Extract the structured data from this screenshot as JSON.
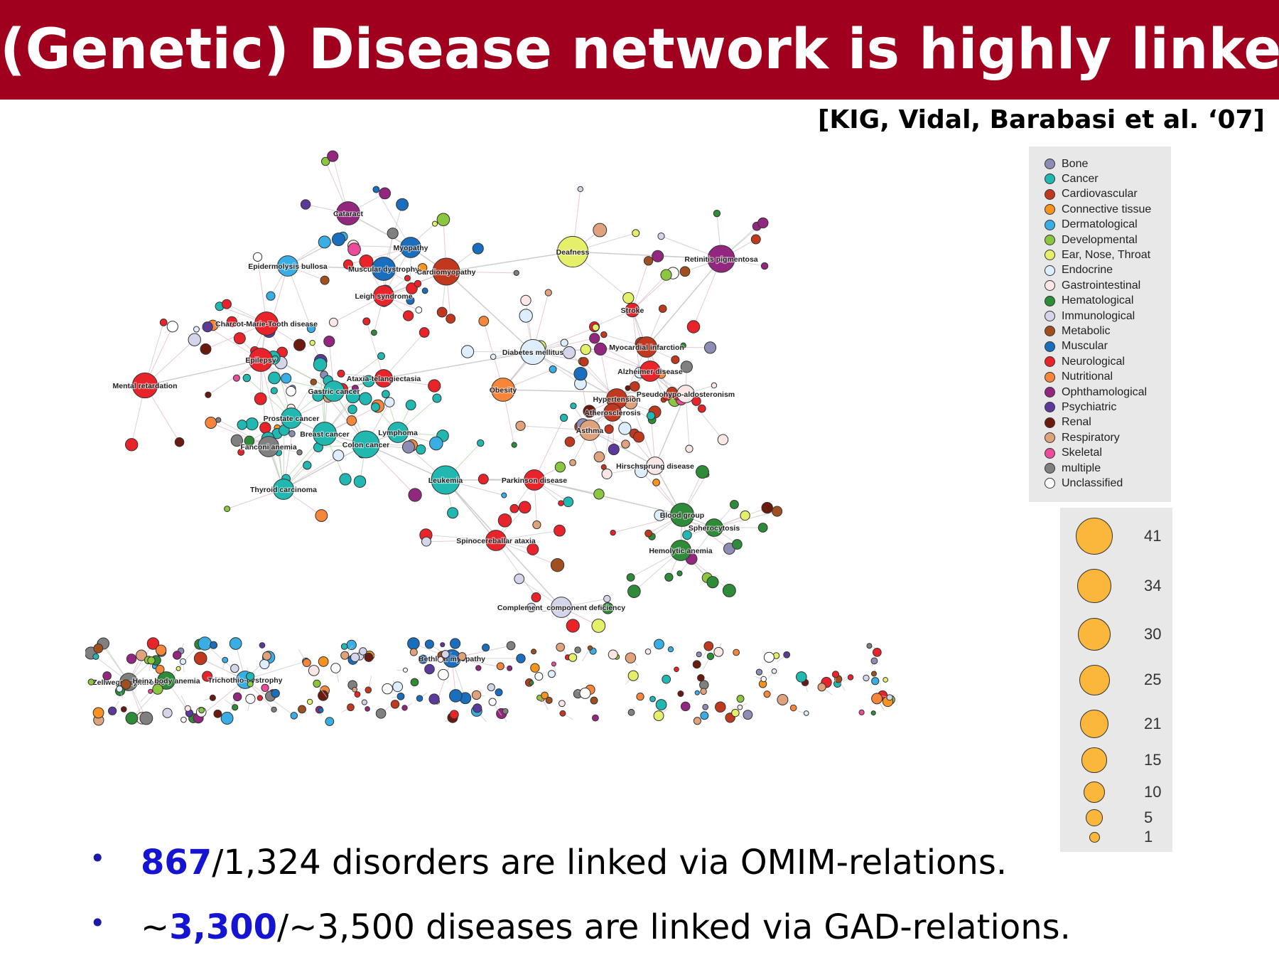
{
  "title": "(Genetic) Disease network is highly linked",
  "citation": "[KIG, Vidal, Barabasi et al. ‘07]",
  "colors": {
    "title_bar": "#a0001e",
    "highlight": "#1414d2",
    "edge": "#b0b0b0",
    "size_legend_fill": "#fbb73c"
  },
  "legend": {
    "categories": [
      {
        "label": "Bone",
        "color": "#8c8cb4"
      },
      {
        "label": "Cancer",
        "color": "#20b8b0"
      },
      {
        "label": "Cardiovascular",
        "color": "#c0391f"
      },
      {
        "label": "Connective tissue",
        "color": "#f7931e"
      },
      {
        "label": "Dermatological",
        "color": "#38aee4"
      },
      {
        "label": "Developmental",
        "color": "#8cc63f"
      },
      {
        "label": "Ear, Nose, Throat",
        "color": "#e6ef6a"
      },
      {
        "label": "Endocrine",
        "color": "#ddeeff"
      },
      {
        "label": "Gastrointestinal",
        "color": "#fde6e6"
      },
      {
        "label": "Hematological",
        "color": "#2e8b37"
      },
      {
        "label": "Immunological",
        "color": "#d4d4ea"
      },
      {
        "label": "Metabolic",
        "color": "#a0501e"
      },
      {
        "label": "Muscular",
        "color": "#1a6ebe"
      },
      {
        "label": "Neurological",
        "color": "#e8232a"
      },
      {
        "label": "Nutritional",
        "color": "#f7863a"
      },
      {
        "label": "Ophthamological",
        "color": "#93267e"
      },
      {
        "label": "Psychiatric",
        "color": "#5b3a9c"
      },
      {
        "label": "Renal",
        "color": "#6b1a0e"
      },
      {
        "label": "Respiratory",
        "color": "#e0a27c"
      },
      {
        "label": "Skeletal",
        "color": "#ec4b9a"
      },
      {
        "label": "multiple",
        "color": "#808080"
      },
      {
        "label": "Unclassified",
        "color": "#ffffff"
      }
    ],
    "sizes": [
      {
        "label": "41",
        "value": 41
      },
      {
        "label": "34",
        "value": 34
      },
      {
        "label": "30",
        "value": 30
      },
      {
        "label": "25",
        "value": 25
      },
      {
        "label": "21",
        "value": 21
      },
      {
        "label": "15",
        "value": 15
      },
      {
        "label": "10",
        "value": 10
      },
      {
        "label": "5",
        "value": 5
      },
      {
        "label": "1",
        "value": 1
      }
    ]
  },
  "network": {
    "labeled_nodes": [
      {
        "label": "Cataract",
        "category": "Ophthamological",
        "size": 21
      },
      {
        "label": "Epidermolysis bullosa",
        "category": "Dermatological",
        "size": 15
      },
      {
        "label": "Myopathy",
        "category": "Muscular",
        "size": 15
      },
      {
        "label": "Muscular dystrophy",
        "category": "Muscular",
        "size": 21
      },
      {
        "label": "Cardiomyopathy",
        "category": "Cardiovascular",
        "size": 30
      },
      {
        "label": "Deafness",
        "category": "Ear, Nose, Throat",
        "size": 41
      },
      {
        "label": "Retinitis pigmentosa",
        "category": "Ophthamological",
        "size": 30
      },
      {
        "label": "Leigh syndrome",
        "category": "Neurological",
        "size": 15
      },
      {
        "label": "Charcot-Marie-Tooth disease",
        "category": "Neurological",
        "size": 21
      },
      {
        "label": "Stroke",
        "category": "Neurological",
        "size": 5
      },
      {
        "label": "Epilepsy",
        "category": "Neurological",
        "size": 21
      },
      {
        "label": "Diabetes mellitus",
        "category": "Endocrine",
        "size": 25
      },
      {
        "label": "Myocardial infarction",
        "category": "Cardiovascular",
        "size": 15
      },
      {
        "label": "Mental retardation",
        "category": "Neurological",
        "size": 25
      },
      {
        "label": "Ataxia-telangiectasia",
        "category": "Neurological",
        "size": 10
      },
      {
        "label": "Alzheimer disease",
        "category": "Neurological",
        "size": 15
      },
      {
        "label": "Gastric cancer",
        "category": "Cancer",
        "size": 15
      },
      {
        "label": "Obesity",
        "category": "Nutritional",
        "size": 21
      },
      {
        "label": "Hypertension",
        "category": "Cardiovascular",
        "size": 15
      },
      {
        "label": "Pseudohypo-aldosteronism",
        "category": "Gastrointestinal",
        "size": 10
      },
      {
        "label": "Prostate cancer",
        "category": "Cancer",
        "size": 15
      },
      {
        "label": "Atherosclerosis",
        "category": "Cardiovascular",
        "size": 10
      },
      {
        "label": "Breast cancer",
        "category": "Cancer",
        "size": 21
      },
      {
        "label": "Lymphoma",
        "category": "Cancer",
        "size": 15
      },
      {
        "label": "Asthma",
        "category": "Respiratory",
        "size": 15
      },
      {
        "label": "Colon cancer",
        "category": "Cancer",
        "size": 30
      },
      {
        "label": "Fanconi anemia",
        "category": "multiple",
        "size": 15
      },
      {
        "label": "Hirschsprung disease",
        "category": "Gastrointestinal",
        "size": 10
      },
      {
        "label": "Leukemia",
        "category": "Cancer",
        "size": 34
      },
      {
        "label": "Parkinson disease",
        "category": "Neurological",
        "size": 15
      },
      {
        "label": "Thyroid carcinoma",
        "category": "Cancer",
        "size": 15
      },
      {
        "label": "Blood group",
        "category": "Hematological",
        "size": 21
      },
      {
        "label": "Spherocytosis",
        "category": "Hematological",
        "size": 10
      },
      {
        "label": "Spinocereballar ataxia",
        "category": "Neurological",
        "size": 15
      },
      {
        "label": "Hemolytic anemia",
        "category": "Hematological",
        "size": 15
      },
      {
        "label": "Complement_component deficiency",
        "category": "Immunological",
        "size": 15
      },
      {
        "label": "Zellweger syndrome",
        "category": "multiple",
        "size": 10
      },
      {
        "label": "Heinz body anemia",
        "category": "Hematological",
        "size": 10
      },
      {
        "label": "Trichothio-dystrophy",
        "category": "Dermatological",
        "size": 10
      },
      {
        "label": "Bethlem myopathy",
        "category": "Muscular",
        "size": 10
      }
    ]
  },
  "bullets": [
    {
      "highlight": "867",
      "rest": "/1,324 disorders are linked via OMIM-relations."
    },
    {
      "prefix": "~",
      "highlight": "3,300",
      "rest": "/~3,500 diseases are linked via GAD-relations."
    }
  ]
}
